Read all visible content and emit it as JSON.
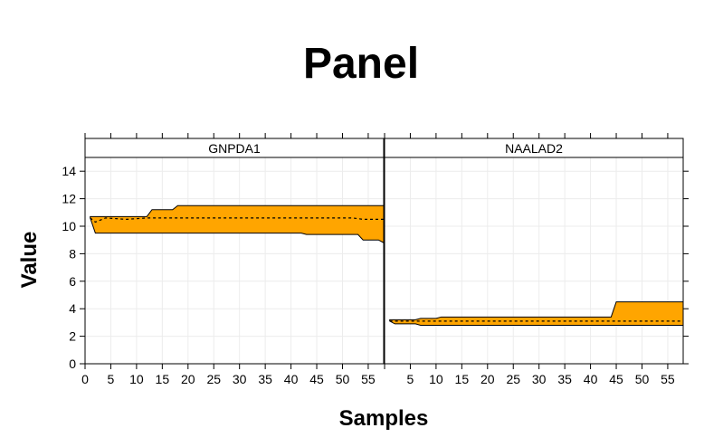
{
  "chart_data": {
    "type": "area",
    "title": "Panel",
    "xlabel": "Samples",
    "ylabel": "Value",
    "ylim": [
      0,
      15
    ],
    "xlim": [
      0,
      58
    ],
    "y_ticks": [
      0,
      2,
      4,
      6,
      8,
      10,
      12,
      14
    ],
    "x_ticks": [
      0,
      5,
      10,
      15,
      20,
      25,
      30,
      35,
      40,
      45,
      50,
      55
    ],
    "grid": true,
    "fill_color": "#FFA500",
    "panels": [
      {
        "name": "GNPDA1",
        "x_ticks": [
          0,
          5,
          10,
          15,
          20,
          25,
          30,
          35,
          40,
          45,
          50,
          55
        ],
        "upper": [
          [
            1,
            10.7
          ],
          [
            12,
            10.7
          ],
          [
            13,
            11.2
          ],
          [
            17,
            11.2
          ],
          [
            18,
            11.5
          ],
          [
            58,
            11.5
          ]
        ],
        "lower": [
          [
            1,
            10.6
          ],
          [
            2,
            9.5
          ],
          [
            42,
            9.5
          ],
          [
            43,
            9.4
          ],
          [
            53,
            9.4
          ],
          [
            54,
            9.0
          ],
          [
            57,
            9.0
          ],
          [
            58,
            8.8
          ]
        ],
        "median": [
          [
            1,
            10.6
          ],
          [
            2,
            10.3
          ],
          [
            4,
            10.6
          ],
          [
            8,
            10.5
          ],
          [
            12,
            10.6
          ],
          [
            52,
            10.6
          ],
          [
            54,
            10.5
          ],
          [
            58,
            10.5
          ]
        ]
      },
      {
        "name": "NAALAD2",
        "x_ticks": [
          5,
          10,
          15,
          20,
          25,
          30,
          35,
          40,
          45,
          50,
          55
        ],
        "upper": [
          [
            1,
            3.2
          ],
          [
            6,
            3.2
          ],
          [
            7,
            3.3
          ],
          [
            10,
            3.3
          ],
          [
            11,
            3.4
          ],
          [
            44,
            3.4
          ],
          [
            45,
            4.5
          ],
          [
            58,
            4.5
          ]
        ],
        "lower": [
          [
            1,
            3.1
          ],
          [
            2,
            2.9
          ],
          [
            6,
            2.9
          ],
          [
            7,
            2.8
          ],
          [
            58,
            2.8
          ]
        ],
        "median": [
          [
            1,
            3.1
          ],
          [
            58,
            3.1
          ]
        ]
      }
    ]
  }
}
